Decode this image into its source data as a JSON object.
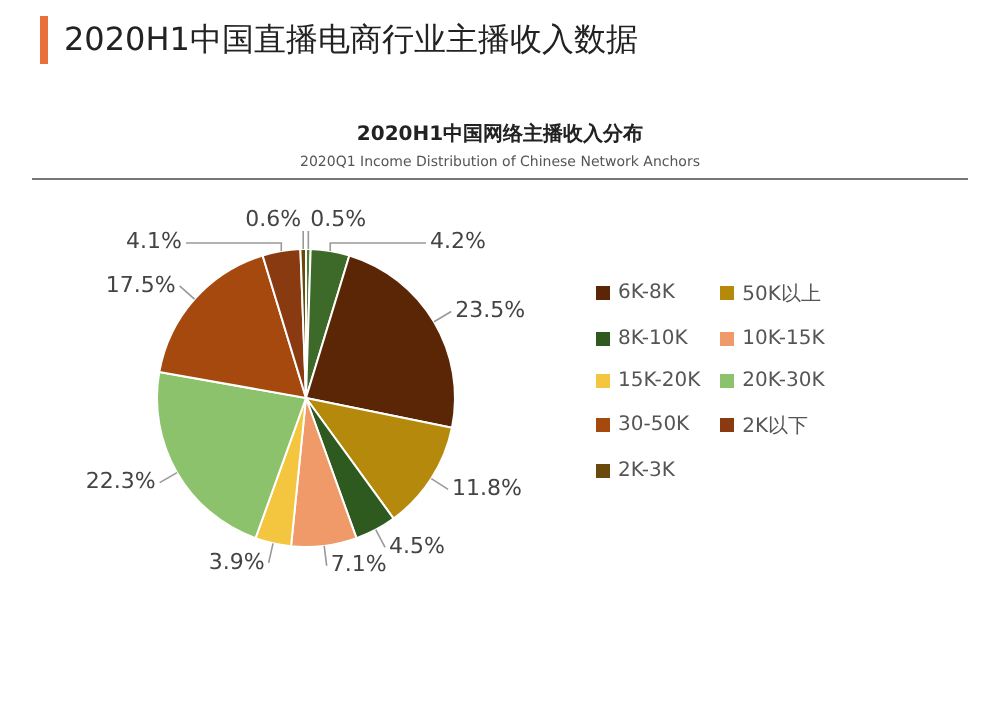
{
  "chart_data": {
    "type": "pie",
    "title": "2020H1中国直播电商行业主播收入数据",
    "subtitle": "2020H1中国网络主播收入分布",
    "annotations": [
      "2020Q1 Income Distribution of Chinese Network Anchors"
    ],
    "categories": [
      null,
      null,
      "6K-8K",
      "50K以上",
      "8K-10K",
      "10K-15K",
      "15K-20K",
      "20K-30K",
      "30-50K",
      "2K以下",
      "2K-3K"
    ],
    "values": [
      0.5,
      4.2,
      23.5,
      11.8,
      4.5,
      7.1,
      3.9,
      22.3,
      17.5,
      4.1,
      0.6
    ],
    "value_labels": [
      "0.5%",
      "4.2%",
      "23.5%",
      "11.8%",
      "4.5%",
      "7.1%",
      "3.9%",
      "22.3%",
      "17.5%",
      "4.1%",
      "0.6%"
    ],
    "colors": [
      "#4f7f35",
      "#3d6a28",
      "#5a2606",
      "#b58a0c",
      "#2e5a1f",
      "#ef9a68",
      "#f4c53e",
      "#8cc26b",
      "#a5490f",
      "#8a3a10",
      "#6a4a0c"
    ],
    "legend": "right"
  }
}
